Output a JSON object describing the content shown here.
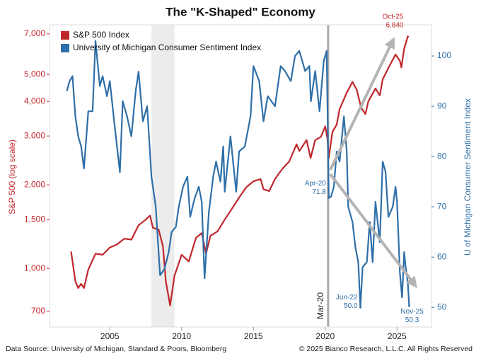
{
  "chart_data": {
    "type": "line",
    "title": "The \"K-Shaped\" Economy",
    "y_label": "S&P 500 (log scale)",
    "y2_label": "U of Michigan Consumer Sentiment Index",
    "source": "Data Source: University of Michigan, Standard & Poors, Bloomberg",
    "copyright": "© 2025 Bianco Research, L.L.C. All Rights Reserved",
    "log_scale_y": true,
    "grid": false,
    "legend": "top-left",
    "xlim": [
      2000.8,
      2027.4
    ],
    "xticks": [
      2005,
      2010,
      2015,
      2020,
      2025
    ],
    "ylim": [
      615,
      7550
    ],
    "yticks": [
      700,
      {
        "value": 1000,
        "label": "1,000"
      },
      {
        "value": 1500,
        "label": "1,500"
      },
      {
        "value": 2000,
        "label": "2,000"
      },
      {
        "value": 3000,
        "label": "3,000"
      },
      {
        "value": 4000,
        "label": "4,000"
      },
      {
        "value": 5000,
        "label": "5,000"
      },
      {
        "value": 7000,
        "label": "7,000"
      }
    ],
    "y2lim": [
      46.1,
      106.2
    ],
    "y2ticks": [
      50,
      60,
      70,
      80,
      90,
      100
    ],
    "shaded_periods": [
      [
        2007.9,
        2009.5
      ]
    ],
    "vlines": [
      {
        "x": 2020.2,
        "label": "Mar-20"
      }
    ],
    "series": [
      {
        "name": "S&P 500 Index",
        "color": "#c0272d",
        "x": [
          2002.3,
          2002.6,
          2002.8,
          2003.0,
          2003.2,
          2003.5,
          2004.0,
          2004.5,
          2005.0,
          2005.5,
          2006.0,
          2006.5,
          2007.0,
          2007.5,
          2007.8,
          2008.0,
          2008.4,
          2008.7,
          2008.9,
          2009.2,
          2009.5,
          2010.0,
          2010.5,
          2011.0,
          2011.4,
          2011.7,
          2012.0,
          2012.5,
          2013.0,
          2013.5,
          2014.0,
          2014.5,
          2015.0,
          2015.5,
          2015.7,
          2016.1,
          2016.5,
          2017.0,
          2017.5,
          2018.0,
          2018.2,
          2018.7,
          2018.98,
          2019.3,
          2019.7,
          2020.0,
          2020.15,
          2020.25,
          2020.5,
          2020.8,
          2021.0,
          2021.5,
          2021.9,
          2022.2,
          2022.5,
          2022.8,
          2023.0,
          2023.5,
          2023.8,
          2024.0,
          2024.5,
          2024.9,
          2025.2,
          2025.3,
          2025.5,
          2025.75
        ],
        "values": [
          1150,
          900,
          850,
          880,
          850,
          990,
          1130,
          1120,
          1190,
          1220,
          1280,
          1270,
          1430,
          1500,
          1550,
          1400,
          1380,
          1200,
          900,
          735,
          940,
          1120,
          1060,
          1290,
          1340,
          1130,
          1310,
          1360,
          1500,
          1640,
          1800,
          1960,
          2060,
          2100,
          1930,
          1900,
          2100,
          2280,
          2430,
          2800,
          2650,
          2900,
          2500,
          2900,
          2980,
          3250,
          2950,
          2500,
          3100,
          3300,
          3750,
          4300,
          4700,
          4400,
          3800,
          3600,
          4000,
          4450,
          4200,
          4800,
          5400,
          5900,
          5600,
          5300,
          6200,
          6840
        ]
      },
      {
        "name": "University of Michigan Consumer Sentiment Index",
        "color": "#2e6fa8",
        "axis": "y2",
        "x": [
          2002.0,
          2002.2,
          2002.4,
          2002.6,
          2002.8,
          2003.0,
          2003.2,
          2003.5,
          2003.8,
          2004.0,
          2004.3,
          2004.5,
          2004.8,
          2005.0,
          2005.3,
          2005.7,
          2005.9,
          2006.2,
          2006.5,
          2006.8,
          2007.0,
          2007.3,
          2007.6,
          2007.9,
          2008.2,
          2008.5,
          2008.8,
          2009.1,
          2009.3,
          2009.6,
          2009.8,
          2010.1,
          2010.4,
          2010.6,
          2010.9,
          2011.2,
          2011.4,
          2011.6,
          2011.9,
          2012.2,
          2012.4,
          2012.7,
          2012.9,
          2013.0,
          2013.4,
          2013.8,
          2014.0,
          2014.4,
          2014.8,
          2015.0,
          2015.4,
          2015.7,
          2016.0,
          2016.5,
          2016.9,
          2017.2,
          2017.6,
          2017.9,
          2018.2,
          2018.6,
          2018.9,
          2019.0,
          2019.3,
          2019.6,
          2019.9,
          2020.1,
          2020.25,
          2020.4,
          2020.6,
          2020.8,
          2021.0,
          2021.3,
          2021.5,
          2021.6,
          2021.9,
          2022.1,
          2022.3,
          2022.45,
          2022.6,
          2022.9,
          2023.1,
          2023.3,
          2023.5,
          2023.8,
          2024.0,
          2024.2,
          2024.4,
          2024.7,
          2024.9,
          2025.0,
          2025.2,
          2025.35,
          2025.5,
          2025.6,
          2025.75,
          2025.85
        ],
        "values": [
          93,
          95,
          96,
          88,
          84,
          82,
          77.6,
          89,
          89,
          103,
          94,
          96,
          92,
          95,
          87,
          76.9,
          91,
          88,
          84,
          93,
          96.9,
          87,
          90,
          76,
          70,
          56.4,
          57.6,
          61,
          65,
          66,
          70,
          74,
          76,
          68,
          71.6,
          74,
          71,
          55.8,
          69,
          76,
          79,
          75,
          82,
          73,
          84,
          73,
          81,
          82,
          88,
          98,
          95,
          87,
          92,
          90,
          98,
          97,
          95,
          100,
          101,
          97,
          98,
          91,
          97,
          89,
          99,
          101,
          71.8,
          72,
          74,
          81,
          79,
          88,
          81,
          70,
          67,
          62,
          59,
          50.0,
          58,
          59,
          67,
          59,
          71,
          63,
          79,
          77,
          68,
          70,
          74,
          71,
          57,
          52,
          61,
          58,
          55,
          50.3
        ]
      }
    ],
    "annotations": [
      {
        "x": 2025.75,
        "value": 6840,
        "date_label": "Oct-25",
        "value_label": "6,840"
      },
      {
        "x": 2020.25,
        "value": 71.8,
        "axis": "y2",
        "date_label": "Apr-20",
        "value_label": "71.8"
      },
      {
        "x": 2022.45,
        "value": 50.0,
        "axis": "y2",
        "date_label": "Jun-22",
        "value_label": "50.0"
      },
      {
        "x": 2025.85,
        "value": 50.3,
        "axis": "y2",
        "date_label": "Nov-25",
        "value_label": "50.3"
      }
    ]
  }
}
